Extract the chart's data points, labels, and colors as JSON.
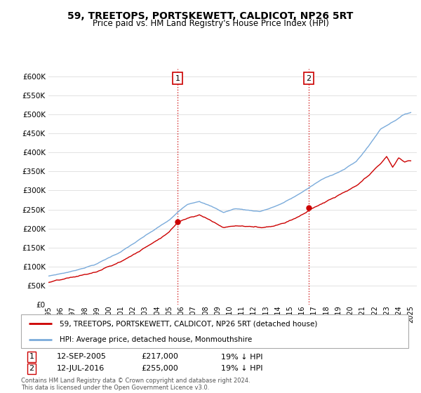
{
  "title": "59, TREETOPS, PORTSKEWETT, CALDICOT, NP26 5RT",
  "subtitle": "Price paid vs. HM Land Registry's House Price Index (HPI)",
  "sale1_date": "12-SEP-2005",
  "sale1_price": 217000,
  "sale1_pct": "19% ↓ HPI",
  "sale2_date": "12-JUL-2016",
  "sale2_price": 255000,
  "sale2_pct": "19% ↓ HPI",
  "legend_label_red": "59, TREETOPS, PORTSKEWETT, CALDICOT, NP26 5RT (detached house)",
  "legend_label_blue": "HPI: Average price, detached house, Monmouthshire",
  "footnote": "Contains HM Land Registry data © Crown copyright and database right 2024.\nThis data is licensed under the Open Government Licence v3.0.",
  "red_color": "#cc0000",
  "blue_color": "#7aabdb",
  "vline_color": "#cc0000",
  "ylim": [
    0,
    620000
  ],
  "yticks": [
    0,
    50000,
    100000,
    150000,
    200000,
    250000,
    300000,
    350000,
    400000,
    450000,
    500000,
    550000,
    600000
  ],
  "year_start": 1995,
  "year_end": 2025
}
